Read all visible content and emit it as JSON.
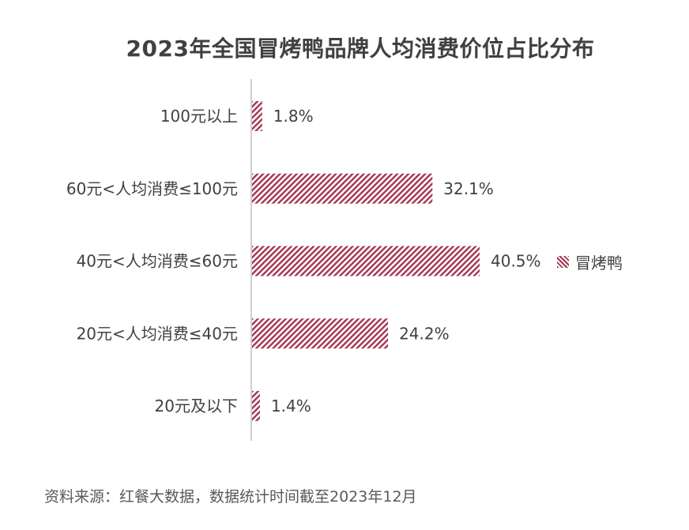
{
  "chart_data": {
    "type": "bar",
    "orientation": "horizontal",
    "title": "2023年全国冒烤鸭品牌人均消费价位占比分布",
    "categories": [
      "100元以上",
      "60元<人均消费≤100元",
      "40元<人均消费≤60元",
      "20元<人均消费≤40元",
      "20元及以下"
    ],
    "series": [
      {
        "name": "冒烤鸭",
        "values": [
          1.8,
          32.1,
          40.5,
          24.2,
          1.4
        ],
        "labels": [
          "1.8%",
          "32.1%",
          "40.5%",
          "24.2%",
          "1.4%"
        ]
      }
    ],
    "value_unit": "%",
    "xlim": [
      0,
      100
    ],
    "grid": false,
    "legend_position": "right",
    "bar_color": "#a33550",
    "bar_pattern": "diagonal-hatch"
  },
  "source": "资料来源：红餐大数据，数据统计时间截至2023年12月",
  "colors": {
    "bar": "#a33550",
    "text": "#404040",
    "axis": "#bfbfbf"
  }
}
